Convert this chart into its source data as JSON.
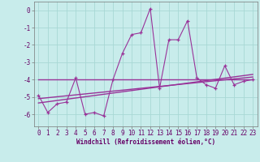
{
  "xlabel": "Windchill (Refroidissement éolien,°C)",
  "background_color": "#c8eceb",
  "grid_color": "#a8d8d5",
  "line_color": "#993399",
  "xlim": [
    -0.5,
    23.5
  ],
  "ylim": [
    -6.7,
    0.5
  ],
  "yticks": [
    0,
    -1,
    -2,
    -3,
    -4,
    -5,
    -6
  ],
  "xticks": [
    0,
    1,
    2,
    3,
    4,
    5,
    6,
    7,
    8,
    9,
    10,
    11,
    12,
    13,
    14,
    15,
    16,
    17,
    18,
    19,
    20,
    21,
    22,
    23
  ],
  "series1_x": [
    0,
    1,
    2,
    3,
    4,
    5,
    6,
    7,
    8,
    9,
    10,
    11,
    12,
    13,
    14,
    15,
    16,
    17,
    18,
    19,
    20,
    21,
    22,
    23
  ],
  "series1_y": [
    -4.9,
    -5.9,
    -5.4,
    -5.3,
    -3.9,
    -6.0,
    -5.9,
    -6.1,
    -4.0,
    -2.5,
    -1.4,
    -1.3,
    0.1,
    -4.5,
    -1.7,
    -1.7,
    -0.6,
    -3.9,
    -4.3,
    -4.5,
    -3.2,
    -4.3,
    -4.1,
    -4.0
  ],
  "series2_x": [
    0,
    23
  ],
  "series2_y": [
    -5.1,
    -3.85
  ],
  "series3_x": [
    0,
    23
  ],
  "series3_y": [
    -5.35,
    -3.7
  ],
  "series4_x": [
    0,
    23
  ],
  "series4_y": [
    -4.0,
    -4.0
  ],
  "tick_fontsize": 5.5,
  "xlabel_fontsize": 5.5,
  "tick_color": "#660066",
  "xlabel_color": "#660066"
}
